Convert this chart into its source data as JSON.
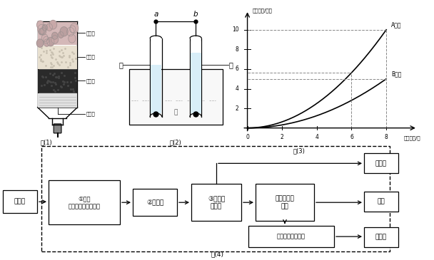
{
  "fig1_caption": "图(1)",
  "fig2_caption": "图(2)",
  "fig3_caption": "图(3)",
  "fig4_caption": "图(4)",
  "fig1_labels": [
    "小卵石",
    "石英砂",
    "活性炭",
    "膨松棉"
  ],
  "fig2_labels": [
    "甲",
    "乙",
    "a",
    "b",
    "水"
  ],
  "fig3_ylabel": "气体体积/毫升",
  "fig3_xlabel": "通电时间/秒",
  "fig3_A_label": "A气体",
  "fig3_B_label": "B气体",
  "fig3_xticks": [
    0,
    2,
    4,
    6,
    8
  ],
  "fig3_yticks": [
    2,
    4,
    6,
    8,
    10
  ],
  "fig4_node_tapwater": "自来水",
  "fig4_node1": "①炭罐\n（内含活性炭颗粒）",
  "fig4_node2": "②超滤膜",
  "fig4_node3": "③紫外灯\n管照射",
  "fig4_node4": "电热开水器\n加热",
  "fig4_out1": "直饮水",
  "fig4_out2": "开水",
  "fig4_node5": "热交换器内管降温",
  "fig4_out3": "温开水",
  "bg_color": "#ffffff",
  "pebble_color": "#d4b8b8",
  "sand_color": "#e8e0d0",
  "charcoal_color": "#2a2a2a",
  "cotton_color": "#e0e0e0"
}
